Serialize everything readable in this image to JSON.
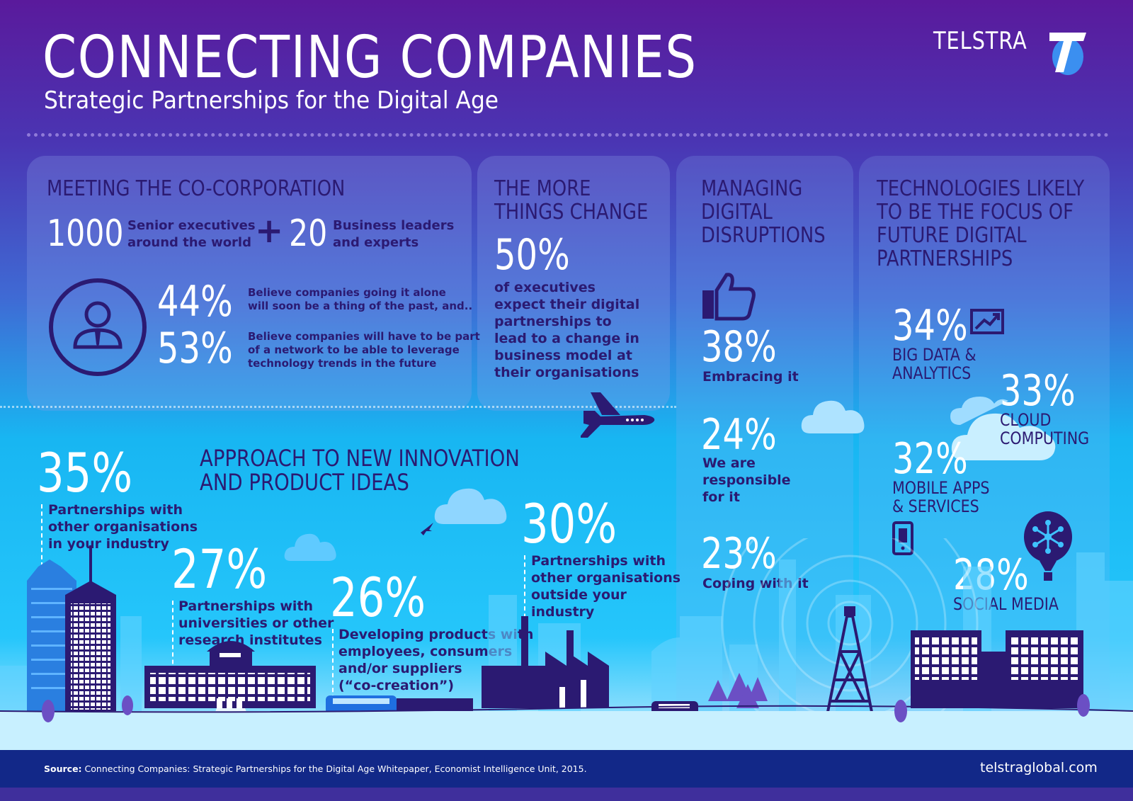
{
  "header": {
    "title": "CONNECTING COMPANIES",
    "subtitle": "Strategic Partnerships for the Digital Age",
    "brand": "TELSTRA"
  },
  "colors": {
    "navy": "#2b1a72",
    "accent_purple": "#5a1a9c",
    "sky": "#25c6fb",
    "footer": "#122888"
  },
  "meeting": {
    "title": "MEETING THE CO-CORPORATION",
    "executives_count": "1000",
    "executives_label_1": "Senior executives",
    "executives_label_2": "around the world",
    "plus": "+",
    "leaders_count": "20",
    "leaders_label_1": "Business leaders",
    "leaders_label_2": "and experts",
    "stat1_value": "44%",
    "stat1_line1": "Believe companies going it alone",
    "stat1_line2": "will soon be a thing of the past, and..",
    "stat2_value": "53%",
    "stat2_line1": "Believe companies will have to be part",
    "stat2_line2": "of a network to be able to leverage",
    "stat2_line3": "technology trends in the future",
    "icon": "businessperson-icon"
  },
  "change": {
    "title_line1": "THE MORE",
    "title_line2": "THINGS CHANGE",
    "value": "50%",
    "lines": [
      "of executives",
      "expect their digital",
      "partnerships to",
      "lead to a change in",
      "business model at",
      "their organisations"
    ]
  },
  "disruptions": {
    "title_line1": "MANAGING",
    "title_line2": "DIGITAL",
    "title_line3": "DISRUPTIONS",
    "icon": "thumbs-up-icon",
    "items": [
      {
        "value": "38%",
        "label": "Embracing it"
      },
      {
        "value": "24%",
        "label_1": "We are",
        "label_2": "responsible",
        "label_3": "for it"
      },
      {
        "value": "23%",
        "label": "Coping with it"
      }
    ]
  },
  "technologies": {
    "title_lines": [
      "TECHNOLOGIES LIKELY",
      "TO BE THE FOCUS OF",
      "FUTURE DIGITAL",
      "PARTNERSHIPS"
    ],
    "items": [
      {
        "value": "34%",
        "label_1": "BIG DATA &",
        "label_2": "ANALYTICS",
        "icon": "chart-trend-icon"
      },
      {
        "value": "33%",
        "label_1": "CLOUD",
        "label_2": "COMPUTING",
        "icon": "cloud-icon"
      },
      {
        "value": "32%",
        "label_1": "MOBILE APPS",
        "label_2": "& SERVICES",
        "icon": "smartphone-icon"
      },
      {
        "value": "28%",
        "label": "SOCIAL MEDIA",
        "icon": "network-balloon-icon"
      }
    ]
  },
  "approach": {
    "title_line1": "APPROACH TO NEW INNOVATION",
    "title_line2": "AND PRODUCT IDEAS",
    "items": [
      {
        "value": "35%",
        "lines": [
          "Partnerships with",
          "other organisations",
          "in your industry"
        ]
      },
      {
        "value": "27%",
        "lines": [
          "Partnerships with",
          "universities or other",
          "research institutes"
        ]
      },
      {
        "value": "26%",
        "lines": [
          "Developing products with",
          "employees, consumers",
          "and/or suppliers",
          "(“co-creation”)"
        ]
      },
      {
        "value": "30%",
        "lines": [
          "Partnerships with",
          "other organisations",
          "outside your",
          "industry"
        ]
      }
    ]
  },
  "footer": {
    "source_label": "Source:",
    "source_text": "Connecting Companies: Strategic Partnerships for the Digital Age Whitepaper, Economist Intelligence Unit, 2015.",
    "website": "telstraglobal.com"
  }
}
